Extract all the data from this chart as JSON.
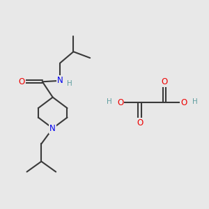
{
  "bg_color": "#e8e8e8",
  "bond_color": "#3a3a3a",
  "bond_lw": 1.5,
  "N_color": "#0000ee",
  "O_color": "#ee0000",
  "H_color": "#5f9ea0",
  "font_size_atom": 8.5,
  "font_size_H": 7.5,
  "figsize": [
    3.0,
    3.0
  ],
  "dpi": 100,
  "xlim": [
    0,
    10
  ],
  "ylim": [
    0,
    10
  ]
}
